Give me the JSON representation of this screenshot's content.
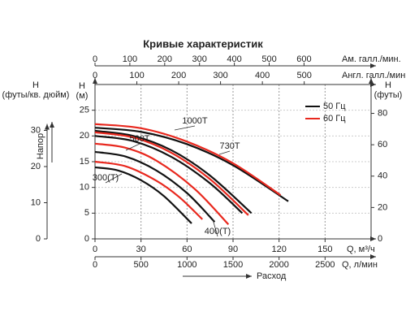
{
  "chart_data": {
    "type": "line",
    "title": "Кривые характеристик",
    "xlabel": "Q, м³/ч",
    "ylabel": [
      "H",
      "(м)"
    ],
    "xlim": [
      0,
      180
    ],
    "xticks": [
      0,
      30,
      60,
      90,
      120,
      150
    ],
    "ylim": [
      0,
      30
    ],
    "yticks": [
      0,
      5,
      10,
      15,
      20,
      25
    ],
    "grid": true,
    "legend": "upper right",
    "extra_axes": [
      {
        "side": "left",
        "label": [
          "H",
          "(футы/кв. дюйм)"
        ],
        "lim": [
          0,
          42.7
        ],
        "ticks": [
          0,
          10,
          20,
          30
        ]
      },
      {
        "side": "right",
        "label": [
          "H",
          "(футы)"
        ],
        "lim": [
          0,
          98.4
        ],
        "ticks": [
          0,
          20,
          40,
          60,
          80
        ]
      },
      {
        "side": "top",
        "label": [
          "Ам. галл./мин."
        ],
        "lim": [
          0,
          792.5
        ],
        "ticks": [
          0,
          100,
          200,
          300,
          400,
          500,
          600
        ]
      },
      {
        "side": "top-inner",
        "label": [
          "Англ. галл./мин."
        ],
        "lim": [
          0,
          659.8
        ],
        "ticks": [
          0,
          100,
          200,
          300,
          400,
          500
        ]
      },
      {
        "side": "bottom-outer",
        "label": [
          "Q, л/мин"
        ],
        "lim": [
          0,
          3000
        ],
        "ticks": [
          0,
          500,
          1000,
          1500,
          2000,
          2500
        ]
      }
    ],
    "head_label": "Напор",
    "flow_label": "Расход",
    "series": [
      {
        "name": "50 Гц",
        "color": "#111111",
        "curves": [
          {
            "x": [
              0,
              15,
              30,
              45,
              63
            ],
            "values": [
              13.9,
              13.3,
              11.4,
              8.3,
              3.0
            ]
          },
          {
            "x": [
              0,
              20,
              40,
              60,
              78
            ],
            "values": [
              16.9,
              16.0,
              13.3,
              8.9,
              3.3
            ]
          },
          {
            "x": [
              0,
              25,
              50,
              75,
              96
            ],
            "values": [
              20.0,
              19.0,
              15.9,
              10.8,
              5.0
            ]
          },
          {
            "x": [
              0,
              25,
              50,
              75,
              102
            ],
            "values": [
              21.0,
              20.0,
              17.2,
              12.3,
              5.0
            ]
          },
          {
            "x": [
              0,
              30,
              60,
              90,
              126
            ],
            "values": [
              21.6,
              20.8,
              18.4,
              14.3,
              7.3
            ]
          }
        ]
      },
      {
        "name": "60 Гц",
        "color": "#e8281e",
        "curves": [
          {
            "x": [
              0,
              20,
              40,
              55,
              70
            ],
            "values": [
              15.0,
              14.1,
              11.3,
              8.1,
              3.8
            ]
          },
          {
            "x": [
              0,
              20,
              40,
              65,
              87
            ],
            "values": [
              18.5,
              17.7,
              15.2,
              9.7,
              2.8
            ]
          },
          {
            "x": [
              0,
              25,
              50,
              75,
              100
            ],
            "values": [
              20.7,
              19.7,
              16.7,
              11.6,
              4.6
            ]
          },
          {
            "x": [
              0,
              30,
              60,
              90,
              121
            ],
            "values": [
              22.3,
              21.5,
              18.9,
              14.7,
              8.5
            ]
          }
        ]
      }
    ],
    "annotations": [
      "1000Т",
      "500Т",
      "730Т",
      "300(Т)",
      "400(Т)"
    ]
  }
}
